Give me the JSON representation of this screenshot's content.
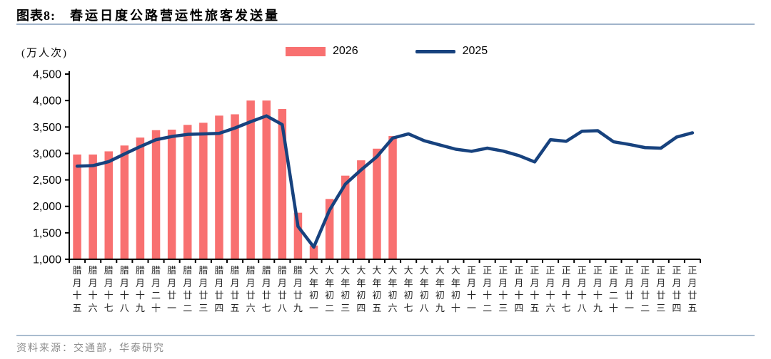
{
  "figure": {
    "label": "图表8:",
    "title": "春运日度公路营运性旅客发送量",
    "unit": "(万人次)",
    "source": "资料来源：交通部，华泰研究"
  },
  "colors": {
    "bar": "#f87070",
    "line": "#17427e",
    "rule": "#a0b4ca",
    "axis": "#000000",
    "source_text": "#8c8c8c"
  },
  "chart_data": {
    "type": "bar",
    "title": "春运日度公路营运性旅客发送量",
    "ylabel": "(万人次)",
    "ylim": [
      1000,
      4500
    ],
    "ytick_step": 500,
    "grid": false,
    "legend_position": "top",
    "categories": [
      "腊月十五",
      "腊月十六",
      "腊月十七",
      "腊月十八",
      "腊月十九",
      "腊月二十",
      "腊月廿一",
      "腊月廿二",
      "腊月廿三",
      "腊月廿四",
      "腊月廿五",
      "腊月廿六",
      "腊月廿七",
      "腊月廿八",
      "腊月廿九",
      "大年初一",
      "大年初二",
      "大年初三",
      "大年初四",
      "大年初五",
      "大年初六",
      "大年初七",
      "大年初八",
      "大年初九",
      "大年初十",
      "正月十一",
      "正月十二",
      "正月十三",
      "正月十四",
      "正月十五",
      "正月十六",
      "正月十七",
      "正月十八",
      "正月十九",
      "正月二十",
      "正月廿一",
      "正月廿二",
      "正月廿三",
      "正月廿四",
      "正月廿五"
    ],
    "series": [
      {
        "name": "2026",
        "type": "bar",
        "color": "#f87070",
        "values": [
          2980,
          2980,
          3040,
          3150,
          3300,
          3440,
          3450,
          3540,
          3580,
          3715,
          3740,
          4000,
          4000,
          3840,
          1880,
          1260,
          2140,
          2580,
          2870,
          3090,
          3330,
          null,
          null,
          null,
          null,
          null,
          null,
          null,
          null,
          null,
          null,
          null,
          null,
          null,
          null,
          null,
          null,
          null,
          null,
          null
        ]
      },
      {
        "name": "2025",
        "type": "line",
        "color": "#17427e",
        "values": [
          2760,
          2770,
          2845,
          2990,
          3130,
          3260,
          3320,
          3360,
          3370,
          3380,
          3480,
          3600,
          3710,
          3545,
          1620,
          1230,
          1930,
          2420,
          2690,
          2940,
          3290,
          3370,
          3240,
          3160,
          3080,
          3040,
          3100,
          3045,
          2960,
          2840,
          3260,
          3230,
          3420,
          3430,
          3220,
          3170,
          3110,
          3100,
          3310,
          3390
        ]
      }
    ]
  }
}
